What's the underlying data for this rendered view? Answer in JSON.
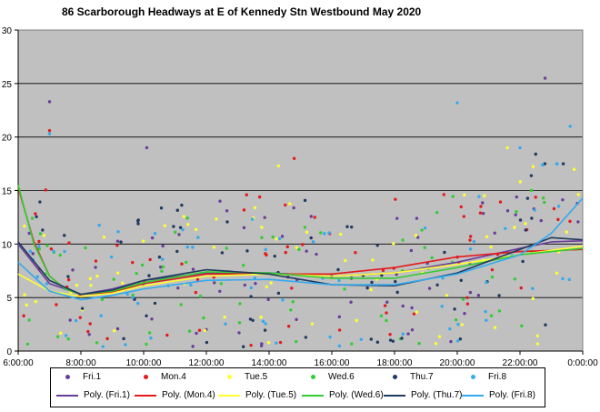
{
  "chart_data": {
    "type": "scatter",
    "title": "86 Scarborough  Headways  at E of Kennedy  Stn Westbound  May 2020",
    "xlabel": "",
    "ylabel": "",
    "x_ticks": [
      "6:00:00",
      "8:00:00",
      "10:00:00",
      "12:00:00",
      "14:00:00",
      "16:00:00",
      "18:00:00",
      "20:00:00",
      "22:00:00",
      "0:00:00"
    ],
    "xlim_hours": [
      6,
      24
    ],
    "ylim": [
      0,
      30
    ],
    "y_ticks": [
      "0",
      "5",
      "10",
      "15",
      "20",
      "25",
      "30"
    ],
    "grid": "horizontal",
    "legend_position": "bottom",
    "series": [
      {
        "name": "Fri.1",
        "color": "#6a3d9a",
        "trend_name": "Poly. (Fri.1)",
        "trend": [
          [
            6,
            10.0
          ],
          [
            7,
            6.3
          ],
          [
            8,
            5.3
          ],
          [
            9,
            5.8
          ],
          [
            10,
            6.6
          ],
          [
            12,
            7.3
          ],
          [
            14,
            7.3
          ],
          [
            16,
            7.0
          ],
          [
            18,
            7.3
          ],
          [
            20,
            8.3
          ],
          [
            22,
            9.6
          ],
          [
            23,
            10.2
          ],
          [
            24,
            10.3
          ]
        ]
      },
      {
        "name": "Mon.4",
        "color": "#e31a1c",
        "trend_name": "Poly. (Mon.4)",
        "trend": [
          [
            6,
            15.3
          ],
          [
            6.5,
            10.2
          ],
          [
            7,
            7.0
          ],
          [
            7.5,
            5.8
          ],
          [
            8,
            5.3
          ],
          [
            9,
            5.5
          ],
          [
            10,
            6.3
          ],
          [
            12,
            7.2
          ],
          [
            14,
            7.2
          ],
          [
            16,
            7.2
          ],
          [
            18,
            7.8
          ],
          [
            20,
            8.8
          ],
          [
            22,
            9.3
          ],
          [
            24,
            9.5
          ]
        ]
      },
      {
        "name": "Tue.5",
        "color": "#ffff33",
        "trend_name": "Poly. (Tue.5)",
        "trend": [
          [
            6,
            7.2
          ],
          [
            7,
            5.6
          ],
          [
            8,
            5.1
          ],
          [
            9,
            5.4
          ],
          [
            10,
            6.1
          ],
          [
            12,
            7.0
          ],
          [
            14,
            7.2
          ],
          [
            16,
            7.0
          ],
          [
            18,
            7.3
          ],
          [
            20,
            8.1
          ],
          [
            22,
            9.0
          ],
          [
            24,
            9.8
          ]
        ]
      },
      {
        "name": "Wed.6",
        "color": "#33cc33",
        "trend_name": "Poly. (Wed.6)",
        "trend": [
          [
            6,
            15.5
          ],
          [
            6.5,
            10.0
          ],
          [
            7,
            7.0
          ],
          [
            7.5,
            5.8
          ],
          [
            8,
            5.3
          ],
          [
            9,
            5.6
          ],
          [
            10,
            6.4
          ],
          [
            12,
            7.4
          ],
          [
            14,
            7.3
          ],
          [
            16,
            6.8
          ],
          [
            18,
            6.8
          ],
          [
            20,
            7.8
          ],
          [
            22,
            9.0
          ],
          [
            24,
            9.6
          ]
        ]
      },
      {
        "name": "Thu.7",
        "color": "#1f3a5f",
        "trend_name": "Poly. (Thu.7)",
        "trend": [
          [
            6,
            10.2
          ],
          [
            7,
            6.6
          ],
          [
            8,
            5.3
          ],
          [
            9,
            5.7
          ],
          [
            10,
            6.6
          ],
          [
            12,
            7.6
          ],
          [
            14,
            7.2
          ],
          [
            16,
            6.2
          ],
          [
            18,
            6.1
          ],
          [
            20,
            7.3
          ],
          [
            22,
            9.5
          ],
          [
            23,
            10.6
          ],
          [
            24,
            10.4
          ]
        ]
      },
      {
        "name": "Fri.8",
        "color": "#33aaee",
        "trend_name": "Poly. (Fri.8)",
        "trend": [
          [
            6,
            8.3
          ],
          [
            7,
            5.6
          ],
          [
            8,
            4.8
          ],
          [
            9,
            5.2
          ],
          [
            10,
            5.8
          ],
          [
            12,
            6.6
          ],
          [
            14,
            6.7
          ],
          [
            16,
            6.2
          ],
          [
            18,
            6.2
          ],
          [
            20,
            7.2
          ],
          [
            22,
            9.0
          ],
          [
            23,
            11.0
          ],
          [
            24,
            14.3
          ]
        ]
      }
    ],
    "highlighted_points": [
      {
        "x": 7.0,
        "y": 23.3,
        "series": "Fri.1"
      },
      {
        "x": 7.0,
        "y": 20.6,
        "series": "Mon.4"
      },
      {
        "x": 7.0,
        "y": 20.3,
        "series": "Fri.8"
      },
      {
        "x": 10.1,
        "y": 19.0,
        "series": "Fri.1"
      },
      {
        "x": 14.8,
        "y": 18.0,
        "series": "Mon.4"
      },
      {
        "x": 14.3,
        "y": 17.3,
        "series": "Tue.5"
      },
      {
        "x": 20.0,
        "y": 23.2,
        "series": "Fri.8"
      },
      {
        "x": 22.8,
        "y": 25.5,
        "series": "Fri.1"
      },
      {
        "x": 23.6,
        "y": 21.0,
        "series": "Fri.8"
      },
      {
        "x": 21.6,
        "y": 19.0,
        "series": "Tue.5"
      },
      {
        "x": 22.0,
        "y": 19.0,
        "series": "Fri.8"
      },
      {
        "x": 22.5,
        "y": 18.4,
        "series": "Thu.7"
      }
    ]
  },
  "colors": {
    "plot_background": "#c0c0c0",
    "gridline": "#000000"
  }
}
